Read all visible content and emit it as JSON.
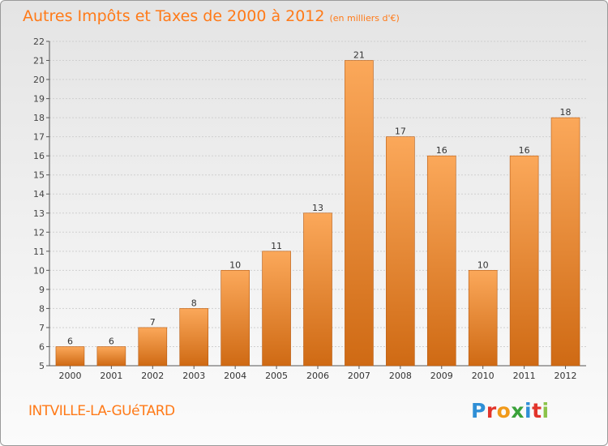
{
  "header": {
    "title": "Autres Impôts et Taxes de 2000 à 2012",
    "unit_note": "(en milliers d'€)"
  },
  "footer": {
    "commune": "INTVILLE-LA-GUéTARD",
    "logo": [
      "P",
      "r",
      "o",
      "x",
      "i",
      "t",
      "i"
    ],
    "logo_colors": [
      "#2f8fd6",
      "#e2342b",
      "#f19a1a",
      "#3aa23a",
      "#2f8fd6",
      "#e2342b",
      "#8bc34a"
    ]
  },
  "colors": {
    "bar_top": "#fba85a",
    "bar_bottom": "#cf6a14",
    "bar_edge": "#b85a10",
    "title": "#ff7a18",
    "axis": "#555555",
    "grid": "#cfcfcf"
  },
  "chart_data": {
    "type": "bar",
    "title": "Autres Impôts et Taxes de 2000 à 2012",
    "subtitle": "(en milliers d'€)",
    "categories": [
      "2000",
      "2001",
      "2002",
      "2003",
      "2004",
      "2005",
      "2006",
      "2007",
      "2008",
      "2009",
      "2010",
      "2011",
      "2012"
    ],
    "values": [
      6,
      6,
      7,
      8,
      10,
      11,
      13,
      21,
      17,
      16,
      10,
      16,
      18
    ],
    "ylim": [
      5,
      22
    ],
    "yticks": [
      5,
      6,
      7,
      8,
      9,
      10,
      11,
      12,
      13,
      14,
      15,
      16,
      17,
      18,
      19,
      20,
      21,
      22
    ],
    "xlabel": "",
    "ylabel": "",
    "grid": true,
    "data_labels": true
  }
}
